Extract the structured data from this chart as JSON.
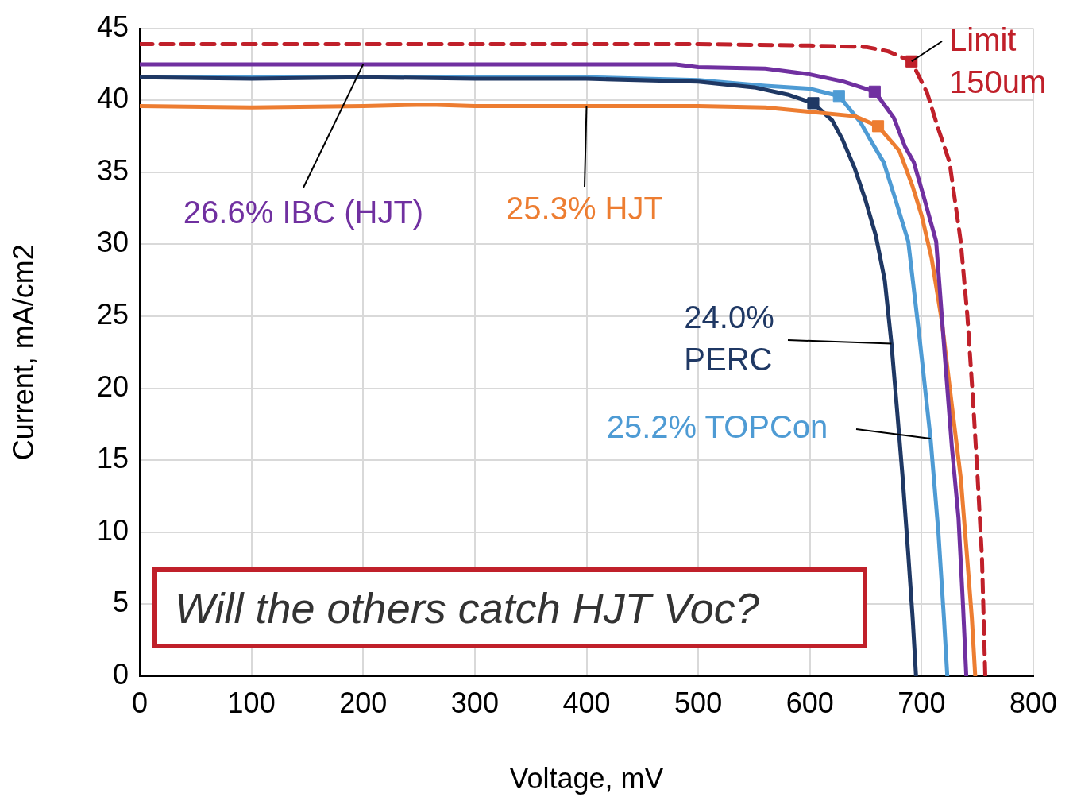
{
  "chart_data": {
    "type": "line",
    "xlabel": "Voltage, mV",
    "ylabel": "Current, mA/cm2",
    "xlim": [
      0,
      800
    ],
    "xticks": [
      0,
      100,
      200,
      300,
      400,
      500,
      600,
      700,
      800
    ],
    "ylim": [
      0,
      45
    ],
    "yticks": [
      0,
      5,
      10,
      15,
      20,
      25,
      30,
      35,
      40,
      45
    ],
    "grid": true,
    "legend": false,
    "marker": "none",
    "annotations": [
      "Will the others catch HJT Voc?"
    ],
    "series": [
      {
        "name": "26.6% IBC (HJT)",
        "color": "#7030a0",
        "x": [
          0,
          100,
          200,
          300,
          400,
          480,
          500,
          560,
          600,
          630,
          658,
          675,
          685,
          693,
          703,
          713,
          721,
          727,
          733,
          737,
          740
        ],
        "values": [
          42.5,
          42.5,
          42.5,
          42.5,
          42.5,
          42.5,
          42.3,
          42.2,
          41.8,
          41.3,
          40.6,
          38.8,
          36.8,
          35.7,
          33,
          30.2,
          22,
          16,
          11,
          5,
          0
        ]
      },
      {
        "name": "25.3% HJT",
        "color": "#ed7d31",
        "x": [
          0,
          100,
          200,
          260,
          300,
          400,
          500,
          560,
          600,
          640,
          661,
          680,
          692,
          700,
          709,
          718,
          726,
          735,
          741,
          745,
          748
        ],
        "values": [
          39.6,
          39.5,
          39.6,
          39.7,
          39.6,
          39.6,
          39.6,
          39.5,
          39.2,
          38.9,
          38.2,
          36.5,
          34,
          32,
          29,
          24.7,
          19.5,
          13.8,
          8,
          4,
          0
        ]
      },
      {
        "name": "24.0% PERC",
        "color": "#1f3864",
        "x": [
          0,
          100,
          200,
          300,
          400,
          500,
          550,
          580,
          603,
          620,
          629,
          640,
          650,
          659,
          667,
          673,
          678,
          683,
          688,
          692,
          695
        ],
        "values": [
          41.6,
          41.5,
          41.6,
          41.5,
          41.5,
          41.3,
          40.9,
          40.4,
          39.8,
          38.6,
          37.3,
          35.3,
          33,
          30.6,
          27.5,
          23.1,
          18.5,
          13.8,
          8.5,
          4,
          0
        ]
      },
      {
        "name": "25.2% TOPCon",
        "color": "#4e9bd4",
        "x": [
          0,
          100,
          200,
          300,
          400,
          500,
          560,
          600,
          626,
          645,
          656,
          666,
          677,
          688,
          698,
          708,
          715,
          720,
          723
        ],
        "values": [
          41.6,
          41.6,
          41.6,
          41.6,
          41.6,
          41.4,
          41,
          40.8,
          40.3,
          38.5,
          37,
          35.7,
          33,
          30.2,
          23.6,
          16.5,
          10,
          4,
          0
        ]
      },
      {
        "name": "Limit 150um",
        "color": "#c0202a",
        "line_style": "dashed",
        "x": [
          0,
          100,
          200,
          300,
          400,
          500,
          600,
          650,
          670,
          691,
          705,
          715,
          725,
          735,
          741,
          746,
          750,
          754,
          757
        ],
        "values": [
          43.9,
          43.9,
          43.9,
          43.9,
          43.9,
          43.9,
          43.8,
          43.7,
          43.4,
          42.7,
          40.5,
          38,
          35.7,
          30.2,
          25,
          19.2,
          14,
          8.3,
          0
        ]
      },
      {
        "type": "scatter",
        "marker": "square",
        "x": [
          658,
          661,
          603,
          626,
          691
        ],
        "values": [
          40.6,
          38.2,
          39.8,
          40.3,
          42.7
        ],
        "colors": [
          "#7030a0",
          "#ed7d31",
          "#1f3864",
          "#4e9bd4",
          "#c0202a"
        ]
      }
    ]
  }
}
